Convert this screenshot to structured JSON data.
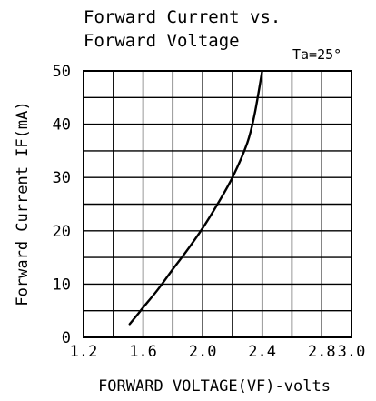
{
  "chart_data": {
    "type": "line",
    "title_line1": "Forward Current vs.",
    "title_line2": "Forward Voltage",
    "condition": "Ta=25°",
    "xlabel": "FORWARD VOLTAGE(VF)-volts",
    "ylabel": "Forward Current IF(mA)",
    "xlim": [
      1.2,
      3.0
    ],
    "ylim": [
      0,
      50
    ],
    "x_ticks": [
      "1.2",
      "1.6",
      "2.0",
      "2.4",
      "2.8",
      "3.0"
    ],
    "x_tick_values": [
      1.2,
      1.6,
      2.0,
      2.4,
      2.8,
      3.0
    ],
    "y_ticks": [
      "0",
      "10",
      "20",
      "30",
      "40",
      "50"
    ],
    "y_tick_values": [
      0,
      10,
      20,
      30,
      40,
      50
    ],
    "grid": true,
    "x_grid_step": 0.2,
    "y_grid_step": 5,
    "series": [
      {
        "x": [
          1.51,
          1.56,
          1.6,
          1.7,
          1.8,
          1.9,
          2.0,
          2.1,
          2.2,
          2.3,
          2.35,
          2.4
        ],
        "y": [
          2.5,
          4.2,
          5.6,
          9.0,
          12.8,
          16.5,
          20.5,
          25.0,
          30.0,
          36.5,
          42.0,
          50.0
        ]
      }
    ]
  }
}
